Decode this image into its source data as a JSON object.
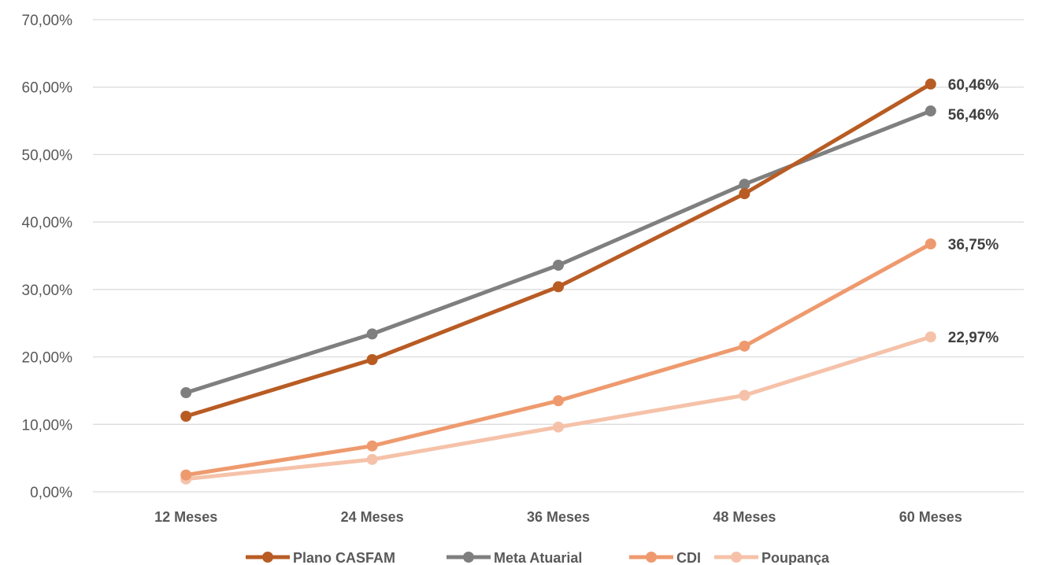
{
  "chart_data": {
    "type": "line",
    "categories": [
      "12 Meses",
      "24 Meses",
      "36 Meses",
      "48 Meses",
      "60 Meses"
    ],
    "ylim": [
      0,
      70
    ],
    "ytick_labels": [
      "0,00%",
      "10,00%",
      "20,00%",
      "30,00%",
      "40,00%",
      "50,00%",
      "60,00%",
      "70,00%"
    ],
    "grid": true,
    "legend_position": "bottom",
    "series": [
      {
        "name": "Plano CASFAM",
        "color": "#B85C24",
        "values": [
          11.2,
          19.6,
          30.4,
          44.2,
          60.46
        ],
        "end_label": "60,46%"
      },
      {
        "name": "Meta Atuarial",
        "color": "#7F7F7F",
        "values": [
          14.7,
          23.4,
          33.6,
          45.6,
          56.46
        ],
        "end_label": "56,46%"
      },
      {
        "name": "CDI",
        "color": "#EE9A6E",
        "values": [
          2.5,
          6.8,
          13.5,
          21.6,
          36.75
        ],
        "end_label": "36,75%"
      },
      {
        "name": "Poupança",
        "color": "#F5C2A9",
        "values": [
          1.9,
          4.8,
          9.6,
          14.3,
          22.97
        ],
        "end_label": "22,97%"
      }
    ]
  }
}
